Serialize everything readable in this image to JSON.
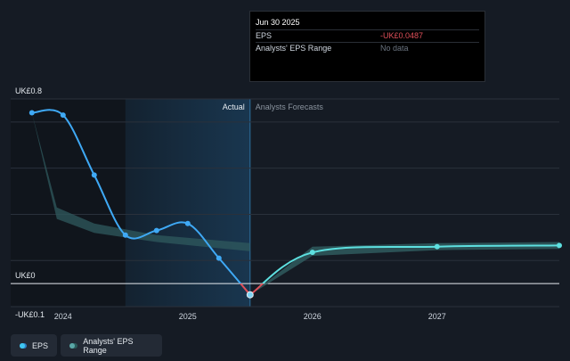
{
  "tooltip": {
    "date": "Jun 30 2025",
    "rows": [
      {
        "label": "EPS",
        "value": "-UK£0.0487"
      },
      {
        "label": "Analysts' EPS Range",
        "value": "No data"
      }
    ]
  },
  "chart_data": {
    "type": "line",
    "y_tick_labels": [
      "UK£0.8",
      "UK£0",
      "-UK£0.1"
    ],
    "x_tick_labels": [
      "2024",
      "2025",
      "2026",
      "2027"
    ],
    "ylim": [
      -0.1,
      0.8
    ],
    "xlim": [
      2023.58,
      2027.98
    ],
    "section_labels": {
      "actual": "Actual",
      "forecast": "Analysts Forecasts"
    },
    "forecast_start": 2025.5,
    "highlight_start": 2024.5,
    "grid": true,
    "legend_position": "bottom-left",
    "series": [
      {
        "name": "EPS",
        "x": [
          2023.75,
          2024.0,
          2024.25,
          2024.5,
          2024.75,
          2025.0,
          2025.25,
          2025.5
        ],
        "values": [
          0.74,
          0.73,
          0.47,
          0.21,
          0.23,
          0.26,
          0.11,
          -0.0487
        ]
      },
      {
        "name": "EPS Forecast",
        "x": [
          2025.5,
          2026.0,
          2027.0,
          2027.98
        ],
        "values": [
          -0.0487,
          0.135,
          0.16,
          0.165
        ]
      }
    ],
    "range": {
      "name": "Analysts' EPS Range",
      "past_x": [
        2023.75,
        2023.95,
        2024.25,
        2024.75,
        2025.5
      ],
      "past_high": [
        0.74,
        0.33,
        0.26,
        0.21,
        0.175
      ],
      "past_low": [
        0.74,
        0.28,
        0.22,
        0.18,
        0.14
      ],
      "future_x": [
        2025.5,
        2026.0,
        2027.0,
        2027.98
      ],
      "future_high": [
        -0.0487,
        0.16,
        0.175,
        0.18
      ],
      "future_low": [
        -0.0487,
        0.12,
        0.145,
        0.15
      ]
    },
    "colors": {
      "eps": "#3fa9f5",
      "eps_negative": "#e0505a",
      "forecast": "#5de0e0",
      "range_band": "#2f5a5e",
      "highlight": "#1a3a55"
    }
  },
  "legend": {
    "eps_label": "EPS",
    "range_label": "Analysts' EPS Range"
  }
}
